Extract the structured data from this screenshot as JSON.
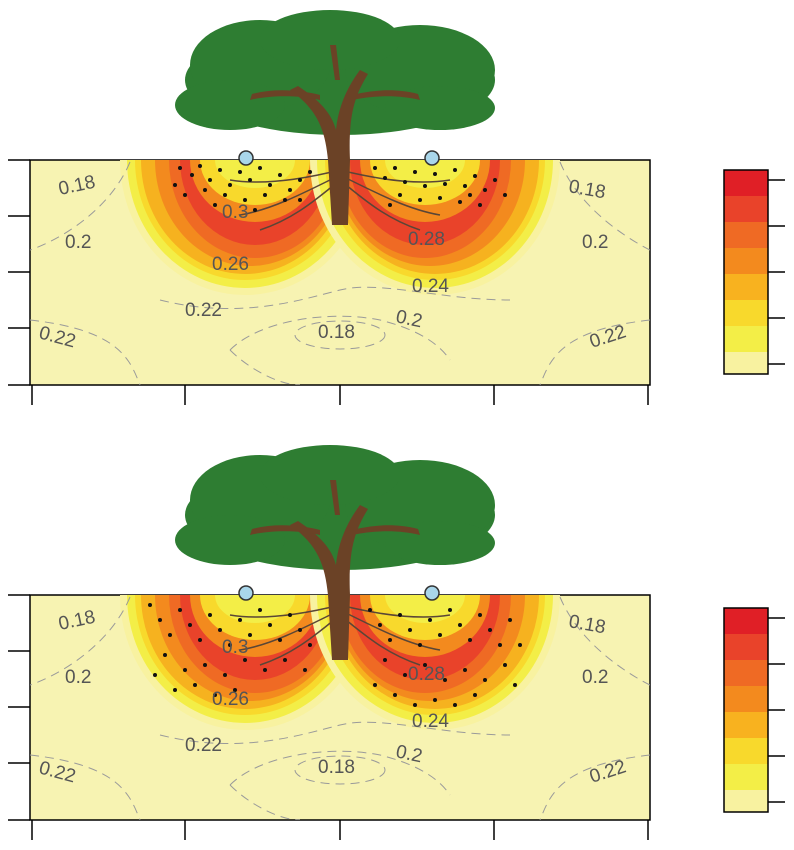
{
  "panels": [
    {
      "contour_labels": [
        "0.18",
        "0.2",
        "0.3",
        "0.28",
        "0.26",
        "0.24",
        "0.22",
        "0.18",
        "0.2",
        "0.22",
        "0.18",
        "0.2",
        "0.22"
      ]
    },
    {
      "contour_labels": [
        "0.18",
        "0.2",
        "0.3",
        "0.28",
        "0.26",
        "0.24",
        "0.22",
        "0.18",
        "0.2",
        "0.22",
        "0.18",
        "0.2",
        "0.22"
      ]
    }
  ],
  "colors": {
    "background_soil": "#f7f3b2",
    "band_1": "#f8f2a0",
    "band_2": "#f3ee47",
    "band_3": "#f8d92c",
    "band_4": "#f6b21f",
    "band_5": "#f38a1e",
    "band_6": "#ef6a24",
    "band_7": "#e9432a",
    "band_8": "#e01f26",
    "canopy": "#2e7d32",
    "trunk": "#6b4226",
    "probe": "#a9d6ea"
  }
}
